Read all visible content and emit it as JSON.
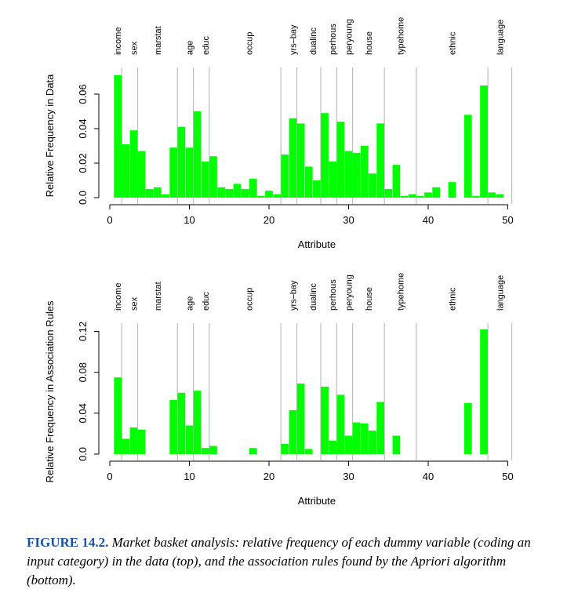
{
  "chart_data": [
    {
      "type": "bar",
      "xlabel": "Attribute",
      "ylabel": "Relative Frequency in Data",
      "xlim": [
        0.5,
        51
      ],
      "ylim": [
        0,
        0.07
      ],
      "xticks": [
        "0",
        "10",
        "20",
        "30",
        "40",
        "50"
      ],
      "yticks": [
        "0.0",
        "0.02",
        "0.04",
        "0.06"
      ],
      "x": [
        1,
        2,
        3,
        4,
        5,
        6,
        7,
        8,
        9,
        10,
        11,
        12,
        13,
        14,
        15,
        16,
        17,
        18,
        19,
        20,
        21,
        22,
        23,
        24,
        25,
        26,
        27,
        28,
        29,
        30,
        31,
        32,
        33,
        34,
        35,
        36,
        37,
        38,
        39,
        40,
        41,
        42,
        43,
        44,
        45,
        46,
        47,
        48,
        49,
        50
      ],
      "values": [
        0.071,
        0.031,
        0.039,
        0.027,
        0.005,
        0.006,
        0.002,
        0.029,
        0.041,
        0.029,
        0.05,
        0.021,
        0.024,
        0.006,
        0.005,
        0.008,
        0.005,
        0.011,
        0.001,
        0.004,
        0.002,
        0.025,
        0.046,
        0.043,
        0.018,
        0.01,
        0.049,
        0.021,
        0.044,
        0.027,
        0.026,
        0.03,
        0.014,
        0.043,
        0.005,
        0.019,
        0.001,
        0.002,
        0.001,
        0.003,
        0.006,
        0.0,
        0.009,
        0.0,
        0.048,
        0.001,
        0.065,
        0.003,
        0.002,
        0.0
      ],
      "grid": "vertical group separators",
      "separators": [
        1.5,
        3.5,
        8.5,
        10.5,
        12.5,
        21.5,
        23.5,
        26.5,
        28.5,
        30.5,
        34.5,
        38.5,
        47.5,
        50.5
      ]
    },
    {
      "type": "bar",
      "xlabel": "Attribute",
      "ylabel": "Relative Frequency in Association Rules",
      "xlim": [
        0.5,
        51
      ],
      "ylim": [
        0,
        0.13
      ],
      "xticks": [
        "0",
        "10",
        "20",
        "30",
        "40",
        "50"
      ],
      "yticks": [
        "0.0",
        "0.04",
        "0.08",
        "0.12"
      ],
      "x": [
        1,
        2,
        3,
        4,
        5,
        6,
        7,
        8,
        9,
        10,
        11,
        12,
        13,
        14,
        15,
        16,
        17,
        18,
        19,
        20,
        21,
        22,
        23,
        24,
        25,
        26,
        27,
        28,
        29,
        30,
        31,
        32,
        33,
        34,
        35,
        36,
        37,
        38,
        39,
        40,
        41,
        42,
        43,
        44,
        45,
        46,
        47,
        48,
        49,
        50
      ],
      "values": [
        0.075,
        0.015,
        0.026,
        0.024,
        0,
        0,
        0,
        0.053,
        0.06,
        0.028,
        0.062,
        0.006,
        0.008,
        0,
        0,
        0,
        0,
        0.006,
        0,
        0,
        0,
        0.01,
        0.043,
        0.069,
        0.005,
        0,
        0.066,
        0.013,
        0.058,
        0.018,
        0.031,
        0.03,
        0.023,
        0.051,
        0,
        0.018,
        0,
        0,
        0,
        0,
        0,
        0,
        0,
        0,
        0.05,
        0,
        0.122,
        0,
        0,
        0
      ],
      "grid": "vertical group separators",
      "separators": [
        1.5,
        3.5,
        8.5,
        10.5,
        12.5,
        21.5,
        23.5,
        26.5,
        28.5,
        30.5,
        34.5,
        38.5,
        47.5,
        50.5
      ]
    }
  ],
  "group_labels": [
    {
      "label": "income",
      "x": 1
    },
    {
      "label": "sex",
      "x": 3
    },
    {
      "label": "marstat",
      "x": 6
    },
    {
      "label": "age",
      "x": 10
    },
    {
      "label": "educ",
      "x": 12
    },
    {
      "label": "occup",
      "x": 17.5
    },
    {
      "label": "yrs–bay",
      "x": 23
    },
    {
      "label": "dualinc",
      "x": 25.5
    },
    {
      "label": "perhous",
      "x": 28
    },
    {
      "label": "peryoung",
      "x": 30
    },
    {
      "label": "house",
      "x": 32.5
    },
    {
      "label": "typehome",
      "x": 36.5
    },
    {
      "label": "ethnic",
      "x": 43
    },
    {
      "label": "language",
      "x": 49
    }
  ],
  "colors": {
    "bar": "#00ff00",
    "separator": "#bebebe",
    "caption_label": "#1a52a8"
  },
  "caption": {
    "label": "FIGURE 14.2.",
    "text": "Market basket analysis: relative frequency of each dummy variable (coding an input category) in the data (top), and the association rules found by the Apriori algorithm (bottom)."
  }
}
